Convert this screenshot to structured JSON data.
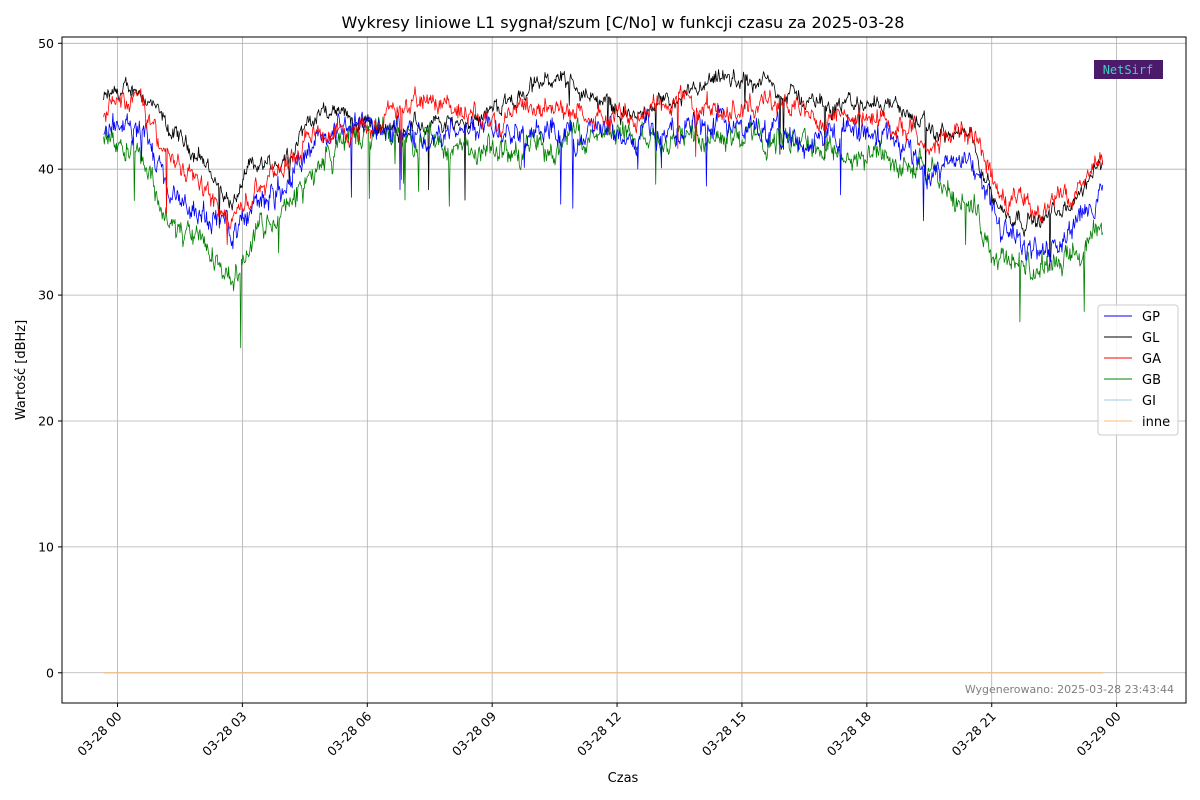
{
  "chart_data": {
    "type": "line",
    "title": "Wykresy liniowe L1 sygnał/szum [C/No] w funkcji czasu za 2025-03-28",
    "xlabel": "Czas",
    "ylabel": "Wartość [dBHz]",
    "x_type": "time",
    "xlim": [
      "2025-03-27 22:40",
      "2025-03-29 01:40"
    ],
    "ylim": [
      -2.4,
      50.5
    ],
    "grid": true,
    "legend_position": "right",
    "x_ticks": [
      {
        "t": "2025-03-28 00:00",
        "label": "03-28 00"
      },
      {
        "t": "2025-03-28 03:00",
        "label": "03-28 03"
      },
      {
        "t": "2025-03-28 06:00",
        "label": "03-28 06"
      },
      {
        "t": "2025-03-28 09:00",
        "label": "03-28 09"
      },
      {
        "t": "2025-03-28 12:00",
        "label": "03-28 12"
      },
      {
        "t": "2025-03-28 15:00",
        "label": "03-28 15"
      },
      {
        "t": "2025-03-28 18:00",
        "label": "03-28 18"
      },
      {
        "t": "2025-03-28 21:00",
        "label": "03-28 21"
      },
      {
        "t": "2025-03-29 00:00",
        "label": "03-29 00"
      }
    ],
    "y_ticks": [
      0,
      10,
      20,
      30,
      40,
      50
    ],
    "x": [
      "2025-03-27 23:40",
      "2025-03-28 00:30",
      "2025-03-28 01:15",
      "2025-03-28 02:00",
      "2025-03-28 02:45",
      "2025-03-28 03:15",
      "2025-03-28 04:00",
      "2025-03-28 04:45",
      "2025-03-28 05:30",
      "2025-03-28 06:30",
      "2025-03-28 07:30",
      "2025-03-28 08:30",
      "2025-03-28 09:30",
      "2025-03-28 10:30",
      "2025-03-28 11:30",
      "2025-03-28 12:30",
      "2025-03-28 13:30",
      "2025-03-28 14:30",
      "2025-03-28 15:30",
      "2025-03-28 16:30",
      "2025-03-28 17:30",
      "2025-03-28 18:30",
      "2025-03-28 19:30",
      "2025-03-28 20:30",
      "2025-03-28 21:15",
      "2025-03-28 22:00",
      "2025-03-28 22:45",
      "2025-03-28 23:40"
    ],
    "series": [
      {
        "name": "GP",
        "color": "#0000ff",
        "noise": 1.2,
        "values": [
          43.5,
          43.5,
          38.0,
          36.5,
          35.0,
          37.0,
          39.0,
          42.0,
          43.5,
          43.5,
          42.5,
          43.5,
          43.5,
          43.0,
          43.0,
          43.0,
          43.0,
          43.5,
          43.0,
          42.0,
          43.0,
          42.5,
          40.0,
          41.0,
          35.5,
          33.5,
          34.5,
          38.0
        ]
      },
      {
        "name": "GL",
        "color": "#000000",
        "noise": 0.8,
        "values": [
          45.5,
          46.5,
          43.0,
          41.0,
          37.0,
          40.5,
          40.5,
          44.5,
          44.5,
          43.0,
          43.5,
          44.0,
          45.5,
          47.5,
          45.5,
          44.0,
          45.5,
          47.0,
          47.0,
          45.5,
          45.0,
          45.5,
          43.0,
          42.5,
          36.5,
          36.0,
          36.5,
          40.5
        ]
      },
      {
        "name": "GA",
        "color": "#ff0000",
        "noise": 1.0,
        "values": [
          45.0,
          45.5,
          41.0,
          39.0,
          35.5,
          38.5,
          40.5,
          43.0,
          43.0,
          44.5,
          45.5,
          44.5,
          44.0,
          45.0,
          44.0,
          44.5,
          45.5,
          44.5,
          45.5,
          44.5,
          44.0,
          44.0,
          42.5,
          43.0,
          38.0,
          37.0,
          37.5,
          41.0
        ]
      },
      {
        "name": "GB",
        "color": "#008000",
        "noise": 1.2,
        "values": [
          43.0,
          42.0,
          35.5,
          34.0,
          31.5,
          34.5,
          36.5,
          40.0,
          42.5,
          43.0,
          42.5,
          41.0,
          41.5,
          42.0,
          43.0,
          42.5,
          43.0,
          43.0,
          42.5,
          42.5,
          41.0,
          41.0,
          39.5,
          37.0,
          32.5,
          32.0,
          32.5,
          35.5
        ]
      },
      {
        "name": "GI",
        "color": "#9ecae1",
        "noise": 0,
        "values": [
          0,
          0,
          0,
          0,
          0,
          0,
          0,
          0,
          0,
          0,
          0,
          0,
          0,
          0,
          0,
          0,
          0,
          0,
          0,
          0,
          0,
          0,
          0,
          0,
          0,
          0,
          0,
          0
        ]
      },
      {
        "name": "inne",
        "color": "#ffbb78",
        "noise": 0,
        "values": [
          0,
          0,
          0,
          0,
          0,
          0,
          0,
          0,
          0,
          0,
          0,
          0,
          0,
          0,
          0,
          0,
          0,
          0,
          0,
          0,
          0,
          0,
          0,
          0,
          0,
          0,
          0,
          0
        ]
      }
    ],
    "footer": "Wygenerowano: 2025-03-28 23:43:44",
    "logo_text": "NetSirf",
    "logo_colors": {
      "background": "#4b1a6b",
      "text": "#ffd700",
      "accent": "#3fd0c0"
    }
  }
}
